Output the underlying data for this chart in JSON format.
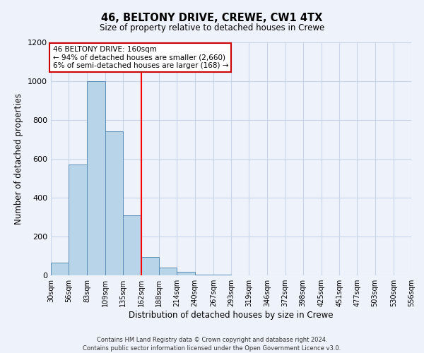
{
  "title": "46, BELTONY DRIVE, CREWE, CW1 4TX",
  "subtitle": "Size of property relative to detached houses in Crewe",
  "bar_values": [
    65,
    570,
    1000,
    740,
    310,
    95,
    40,
    20,
    5,
    5,
    0,
    0,
    0,
    0,
    0,
    0,
    0,
    0,
    0,
    0
  ],
  "bin_edges": [
    30,
    56,
    83,
    109,
    135,
    162,
    188,
    214,
    240,
    267,
    293,
    319,
    346,
    372,
    398,
    425,
    451,
    477,
    503,
    530,
    556
  ],
  "x_tick_labels": [
    "30sqm",
    "56sqm",
    "83sqm",
    "109sqm",
    "135sqm",
    "162sqm",
    "188sqm",
    "214sqm",
    "240sqm",
    "267sqm",
    "293sqm",
    "319sqm",
    "346sqm",
    "372sqm",
    "398sqm",
    "425sqm",
    "451sqm",
    "477sqm",
    "503sqm",
    "530sqm",
    "556sqm"
  ],
  "ylabel": "Number of detached properties",
  "xlabel": "Distribution of detached houses by size in Crewe",
  "ylim": [
    0,
    1200
  ],
  "yticks": [
    0,
    200,
    400,
    600,
    800,
    1000,
    1200
  ],
  "bar_color": "#b8d4e8",
  "bar_edge_color": "#5b8db8",
  "grid_color": "#c8d4e8",
  "property_line_x": 162,
  "annotation_title": "46 BELTONY DRIVE: 160sqm",
  "annotation_line1": "← 94% of detached houses are smaller (2,660)",
  "annotation_line2": "6% of semi-detached houses are larger (168) →",
  "annotation_box_facecolor": "#ffffff",
  "annotation_box_edgecolor": "#cc0000",
  "footer_line1": "Contains HM Land Registry data © Crown copyright and database right 2024.",
  "footer_line2": "Contains public sector information licensed under the Open Government Licence v3.0.",
  "background_color": "#eef2fb"
}
